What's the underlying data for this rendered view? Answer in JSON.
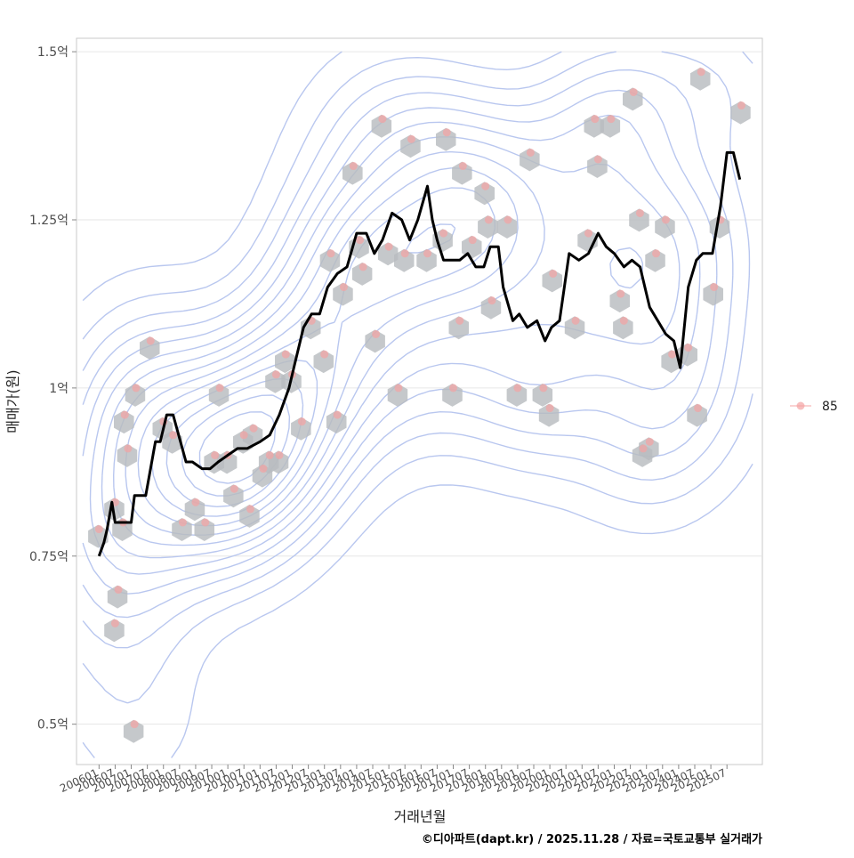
{
  "chart_data": {
    "type": "line",
    "xlabel": "거래년월",
    "ylabel": "매매가(원)",
    "caption": "©디아파트(dapt.kr) / 2025.11.28 / 자료=국토교통부 실거래가",
    "ylim": [
      0.44,
      1.52
    ],
    "yticks": [
      0.5,
      0.75,
      1.0,
      1.25,
      1.5
    ],
    "ytick_labels": [
      "0.5억",
      "0.75억",
      "1억",
      "1.25억",
      "1.5억"
    ],
    "xlim": [
      2005.3,
      2026.6
    ],
    "xticks": [
      2006.0,
      2006.5,
      2007.0,
      2007.5,
      2008.0,
      2008.5,
      2009.0,
      2009.5,
      2010.0,
      2010.5,
      2011.0,
      2011.5,
      2012.0,
      2012.5,
      2013.0,
      2013.5,
      2014.0,
      2014.5,
      2015.0,
      2015.5,
      2016.0,
      2016.5,
      2017.0,
      2017.5,
      2018.0,
      2018.5,
      2019.0,
      2019.5,
      2020.0,
      2020.5,
      2021.0,
      2021.5,
      2022.0,
      2022.5,
      2023.0,
      2023.5,
      2024.0,
      2024.5,
      2025.0,
      2025.5
    ],
    "xtick_labels": [
      "200601",
      "200607",
      "200701",
      "200707",
      "200801",
      "200807",
      "200901",
      "200907",
      "201001",
      "201007",
      "201101",
      "201107",
      "201201",
      "201207",
      "201301",
      "201307",
      "201401",
      "201407",
      "201501",
      "201507",
      "201601",
      "201607",
      "201701",
      "201707",
      "201801",
      "201807",
      "201901",
      "201907",
      "202001",
      "202007",
      "202101",
      "202107",
      "202201",
      "202207",
      "202301",
      "202307",
      "202401",
      "202407",
      "202501",
      "202507"
    ],
    "legend": {
      "label": "85",
      "position": "right"
    },
    "series": [
      {
        "name": "moving-average",
        "x": [
          2006.0,
          2006.15,
          2006.25,
          2006.4,
          2006.5,
          2006.65,
          2007.0,
          2007.1,
          2007.45,
          2007.75,
          2007.9,
          2008.1,
          2008.3,
          2008.7,
          2008.9,
          2009.2,
          2009.45,
          2009.7,
          2010.0,
          2010.3,
          2010.6,
          2011.0,
          2011.3,
          2011.6,
          2011.9,
          2012.1,
          2012.35,
          2012.6,
          2012.85,
          2013.1,
          2013.4,
          2013.7,
          2014.0,
          2014.3,
          2014.55,
          2014.8,
          2015.1,
          2015.4,
          2015.65,
          2015.9,
          2016.2,
          2016.35,
          2016.5,
          2016.7,
          2016.9,
          2017.2,
          2017.45,
          2017.7,
          2017.95,
          2018.15,
          2018.4,
          2018.55,
          2018.85,
          2019.05,
          2019.3,
          2019.6,
          2019.85,
          2020.05,
          2020.3,
          2020.6,
          2020.9,
          2021.2,
          2021.5,
          2021.75,
          2022.0,
          2022.3,
          2022.55,
          2022.8,
          2023.1,
          2023.35,
          2023.6,
          2023.85,
          2024.05,
          2024.3,
          2024.55,
          2024.75,
          2025.05,
          2025.3,
          2025.5,
          2025.7,
          2025.9
        ],
        "values": [
          0.75,
          0.77,
          0.79,
          0.83,
          0.8,
          0.8,
          0.8,
          0.84,
          0.84,
          0.92,
          0.92,
          0.96,
          0.96,
          0.89,
          0.89,
          0.88,
          0.88,
          0.89,
          0.9,
          0.91,
          0.91,
          0.92,
          0.93,
          0.96,
          1.0,
          1.04,
          1.09,
          1.11,
          1.11,
          1.15,
          1.17,
          1.18,
          1.23,
          1.23,
          1.2,
          1.22,
          1.26,
          1.25,
          1.22,
          1.25,
          1.3,
          1.25,
          1.22,
          1.19,
          1.19,
          1.19,
          1.2,
          1.18,
          1.18,
          1.21,
          1.21,
          1.15,
          1.1,
          1.11,
          1.09,
          1.1,
          1.07,
          1.09,
          1.1,
          1.2,
          1.19,
          1.2,
          1.23,
          1.21,
          1.2,
          1.18,
          1.19,
          1.18,
          1.12,
          1.1,
          1.08,
          1.07,
          1.03,
          1.15,
          1.19,
          1.2,
          1.2,
          1.27,
          1.35,
          1.35,
          1.31
        ]
      },
      {
        "name": "85",
        "points": [
          {
            "x": 2006.0,
            "y": 0.79
          },
          {
            "x": 2006.5,
            "y": 0.83
          },
          {
            "x": 2006.8,
            "y": 0.96
          },
          {
            "x": 2006.6,
            "y": 0.7
          },
          {
            "x": 2006.75,
            "y": 0.8
          },
          {
            "x": 2006.9,
            "y": 0.91
          },
          {
            "x": 2007.15,
            "y": 1.0
          },
          {
            "x": 2006.5,
            "y": 0.65
          },
          {
            "x": 2007.1,
            "y": 0.5
          },
          {
            "x": 2007.6,
            "y": 1.07
          },
          {
            "x": 2008.0,
            "y": 0.95
          },
          {
            "x": 2008.3,
            "y": 0.93
          },
          {
            "x": 2008.6,
            "y": 0.8
          },
          {
            "x": 2009.0,
            "y": 0.83
          },
          {
            "x": 2009.3,
            "y": 0.8
          },
          {
            "x": 2009.6,
            "y": 0.9
          },
          {
            "x": 2009.75,
            "y": 1.0
          },
          {
            "x": 2010.0,
            "y": 0.9
          },
          {
            "x": 2010.2,
            "y": 0.85
          },
          {
            "x": 2010.5,
            "y": 0.93
          },
          {
            "x": 2010.7,
            "y": 0.82
          },
          {
            "x": 2010.8,
            "y": 0.94
          },
          {
            "x": 2011.1,
            "y": 0.88
          },
          {
            "x": 2011.3,
            "y": 0.9
          },
          {
            "x": 2011.6,
            "y": 0.9
          },
          {
            "x": 2011.5,
            "y": 1.02
          },
          {
            "x": 2011.8,
            "y": 1.05
          },
          {
            "x": 2012.0,
            "y": 1.02
          },
          {
            "x": 2012.3,
            "y": 0.95
          },
          {
            "x": 2012.6,
            "y": 1.1
          },
          {
            "x": 2013.0,
            "y": 1.05
          },
          {
            "x": 2013.2,
            "y": 1.2
          },
          {
            "x": 2013.4,
            "y": 0.96
          },
          {
            "x": 2013.6,
            "y": 1.15
          },
          {
            "x": 2013.9,
            "y": 1.33
          },
          {
            "x": 2014.1,
            "y": 1.22
          },
          {
            "x": 2014.2,
            "y": 1.18
          },
          {
            "x": 2014.6,
            "y": 1.08
          },
          {
            "x": 2014.8,
            "y": 1.4
          },
          {
            "x": 2015.0,
            "y": 1.21
          },
          {
            "x": 2015.3,
            "y": 1.0
          },
          {
            "x": 2015.5,
            "y": 1.2
          },
          {
            "x": 2015.7,
            "y": 1.37
          },
          {
            "x": 2016.2,
            "y": 1.2
          },
          {
            "x": 2016.7,
            "y": 1.23
          },
          {
            "x": 2016.8,
            "y": 1.38
          },
          {
            "x": 2017.0,
            "y": 1.0
          },
          {
            "x": 2017.2,
            "y": 1.1
          },
          {
            "x": 2017.3,
            "y": 1.33
          },
          {
            "x": 2017.6,
            "y": 1.22
          },
          {
            "x": 2018.0,
            "y": 1.3
          },
          {
            "x": 2018.1,
            "y": 1.25
          },
          {
            "x": 2018.2,
            "y": 1.13
          },
          {
            "x": 2018.7,
            "y": 1.25
          },
          {
            "x": 2019.0,
            "y": 1.0
          },
          {
            "x": 2019.4,
            "y": 1.35
          },
          {
            "x": 2019.8,
            "y": 1.0
          },
          {
            "x": 2020.0,
            "y": 0.97
          },
          {
            "x": 2020.1,
            "y": 1.17
          },
          {
            "x": 2020.8,
            "y": 1.1
          },
          {
            "x": 2021.2,
            "y": 1.23
          },
          {
            "x": 2021.4,
            "y": 1.4
          },
          {
            "x": 2021.5,
            "y": 1.34
          },
          {
            "x": 2021.9,
            "y": 1.4
          },
          {
            "x": 2022.2,
            "y": 1.14
          },
          {
            "x": 2022.3,
            "y": 1.1
          },
          {
            "x": 2022.6,
            "y": 1.44
          },
          {
            "x": 2022.8,
            "y": 1.26
          },
          {
            "x": 2022.9,
            "y": 0.91
          },
          {
            "x": 2023.1,
            "y": 0.92
          },
          {
            "x": 2023.3,
            "y": 1.2
          },
          {
            "x": 2023.6,
            "y": 1.25
          },
          {
            "x": 2023.8,
            "y": 1.05
          },
          {
            "x": 2024.3,
            "y": 1.06
          },
          {
            "x": 2024.6,
            "y": 0.97
          },
          {
            "x": 2024.7,
            "y": 1.47
          },
          {
            "x": 2025.1,
            "y": 1.15
          },
          {
            "x": 2025.3,
            "y": 1.25
          },
          {
            "x": 2025.95,
            "y": 1.42
          }
        ]
      }
    ]
  }
}
